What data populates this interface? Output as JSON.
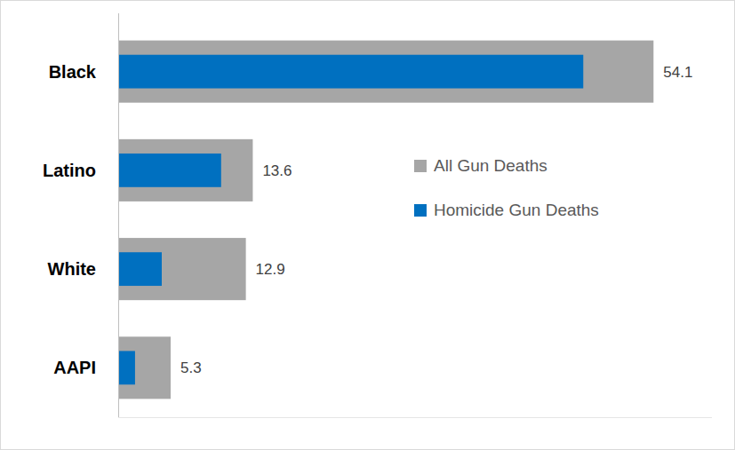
{
  "chart_data": {
    "type": "bar",
    "orientation": "horizontal",
    "categories": [
      "Black",
      "Latino",
      "White",
      "AAPI"
    ],
    "series": [
      {
        "name": "All Gun Deaths",
        "color": "#a6a6a6",
        "values": [
          54.1,
          13.6,
          12.9,
          5.3
        ],
        "data_labels": true
      },
      {
        "name": "Homicide Gun Deaths",
        "color": "#0070c0",
        "values": [
          47.0,
          10.4,
          4.4,
          1.7
        ],
        "data_labels": false
      }
    ],
    "xlim": [
      0,
      60
    ],
    "legend": "right",
    "grid": false
  }
}
